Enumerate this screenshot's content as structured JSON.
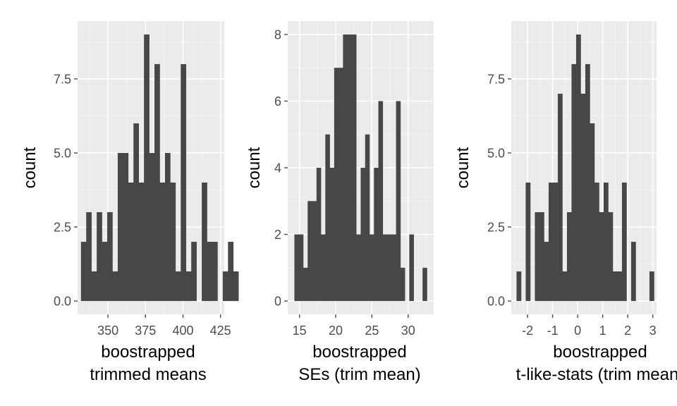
{
  "colors": {
    "panel_bg": "#ebebeb",
    "grid_major": "#ffffff",
    "grid_minor": "#f5f5f5",
    "bar": "#474747",
    "tick": "#4d4d4d",
    "text": "#000000"
  },
  "chart_data": [
    {
      "type": "bar",
      "id": "p1",
      "xlabel": [
        "boostrapped",
        "trimmed means"
      ],
      "ylabel": "count",
      "xlim": [
        329.75,
        427.5
      ],
      "ylim": [
        -0.45,
        9.45
      ],
      "xticks": [
        350,
        375,
        400,
        425
      ],
      "xtick_labels": [
        "350",
        "375",
        "400",
        "425"
      ],
      "yticks": [
        0,
        2.5,
        5,
        7.5
      ],
      "ytick_labels": [
        "0.0",
        "2.5",
        "5.0",
        "7.5"
      ],
      "bin_start": 332,
      "bin_width": 3.5,
      "values": [
        2,
        3,
        1,
        3,
        2,
        3,
        1,
        5,
        5,
        4,
        6,
        4,
        9,
        5,
        8,
        4,
        5,
        4,
        1,
        8,
        1,
        2,
        0,
        4,
        2,
        2,
        0,
        1,
        2,
        1
      ]
    },
    {
      "type": "bar",
      "id": "p2",
      "xlabel": [
        "boostrapped",
        "SEs (trim mean)"
      ],
      "ylabel": "count",
      "xlim": [
        13.38,
        33.53
      ],
      "ylim": [
        -0.4,
        8.4
      ],
      "xticks": [
        15,
        20,
        25,
        30
      ],
      "xtick_labels": [
        "15",
        "20",
        "25",
        "30"
      ],
      "yticks": [
        0,
        2,
        4,
        6,
        8
      ],
      "ytick_labels": [
        "0",
        "2",
        "4",
        "6",
        "8"
      ],
      "bin_start": 14.3,
      "bin_width": 0.61,
      "values": [
        2,
        2,
        1,
        3,
        3,
        4,
        2,
        5,
        4,
        7,
        7,
        8,
        8,
        8,
        2,
        4,
        5,
        2,
        4,
        6,
        2,
        2,
        2,
        6,
        1,
        0,
        2,
        0,
        0,
        1
      ]
    },
    {
      "type": "bar",
      "id": "p3",
      "xlabel": [
        "boostrapped",
        "t-like-stats (trim mean)"
      ],
      "ylabel": "count",
      "xlim": [
        -2.65,
        3.15
      ],
      "ylim": [
        -0.45,
        9.45
      ],
      "xticks": [
        -2,
        -1,
        0,
        1,
        2,
        3
      ],
      "xtick_labels": [
        "-2",
        "-1",
        "0",
        "1",
        "2",
        "3"
      ],
      "yticks": [
        0,
        2.5,
        5,
        7.5
      ],
      "ytick_labels": [
        "0.0",
        "2.5",
        "5.0",
        "7.5"
      ],
      "bin_start": -2.44,
      "bin_width": 0.183,
      "values": [
        1,
        0,
        4,
        0,
        3,
        3,
        2,
        4,
        4,
        7,
        1,
        3,
        8,
        9,
        7,
        8,
        6,
        4,
        3,
        4,
        3,
        1,
        1,
        4,
        0,
        2,
        0,
        0,
        0,
        1
      ]
    }
  ]
}
